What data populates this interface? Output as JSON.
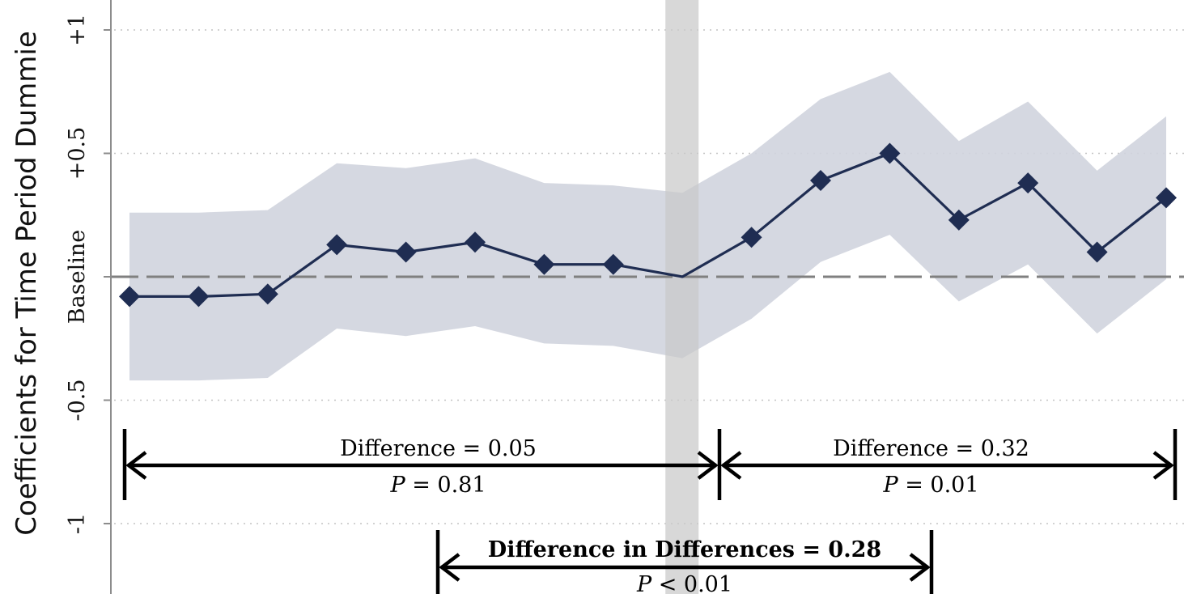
{
  "chart_data": {
    "type": "line",
    "ylabel": "Coefficients for Time Period Dummie",
    "y_ticks": [
      {
        "value": 1,
        "label": "+1"
      },
      {
        "value": 0.5,
        "label": "+0.5"
      },
      {
        "value": 0,
        "label": "Baseline"
      },
      {
        "value": -0.5,
        "label": "-0.5"
      },
      {
        "value": -1,
        "label": "-1"
      }
    ],
    "grid": "horizontal-dotted",
    "baseline_value": 0,
    "shaded_column_after_point": 9,
    "series": [
      {
        "values": [
          -0.08,
          -0.08,
          -0.07,
          0.13,
          0.1,
          0.14,
          0.05,
          0.05,
          0.0,
          0.16,
          0.39,
          0.5,
          0.23,
          0.38,
          0.1,
          0.32
        ],
        "ci_upper": [
          0.26,
          0.26,
          0.27,
          0.46,
          0.44,
          0.48,
          0.38,
          0.37,
          0.34,
          0.5,
          0.72,
          0.83,
          0.55,
          0.71,
          0.43,
          0.65
        ],
        "ci_lower": [
          -0.42,
          -0.42,
          -0.41,
          -0.21,
          -0.24,
          -0.2,
          -0.27,
          -0.28,
          -0.33,
          -0.17,
          0.06,
          0.17,
          -0.1,
          0.05,
          -0.23,
          -0.01
        ]
      }
    ],
    "annotations": [
      {
        "text": "Difference = 0.05",
        "p_label": "P",
        "p_value": " = 0.81",
        "from_point": 1,
        "to_point": 9
      },
      {
        "text": "Difference = 0.32",
        "p_label": "P",
        "p_value": " = 0.01",
        "from_point": 9,
        "to_point": 16
      },
      {
        "text": "Difference in Differences = 0.28",
        "p_label": "P",
        "p_value": " < 0.01"
      }
    ],
    "colors": {
      "line": "#1f2d52",
      "band": "#d0d4de",
      "shade": "#c9c9c9",
      "baseline": "#808080",
      "grid": "#c4c4c4",
      "annotation": "#000000"
    }
  }
}
